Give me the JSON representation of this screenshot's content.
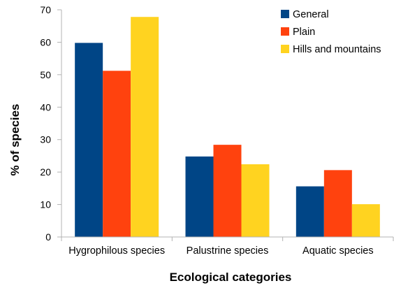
{
  "chart_data": {
    "type": "bar",
    "title": "",
    "xlabel": "Ecological categories",
    "ylabel": "% of species",
    "categories": [
      "Hygrophilous species",
      "Palustrine species",
      "Aquatic species"
    ],
    "ylim": [
      0,
      70
    ],
    "yticks": [
      0,
      10,
      20,
      30,
      40,
      50,
      60,
      70
    ],
    "grid": false,
    "legend_position": "top-right",
    "series": [
      {
        "name": "General",
        "color": "#004586",
        "values": [
          59.8,
          24.8,
          15.6
        ]
      },
      {
        "name": "Plain",
        "color": "#ff420e",
        "values": [
          51.2,
          28.4,
          20.6
        ]
      },
      {
        "name": "Hills and mountains",
        "color": "#ffd320",
        "values": [
          67.8,
          22.4,
          10.1
        ]
      }
    ]
  }
}
